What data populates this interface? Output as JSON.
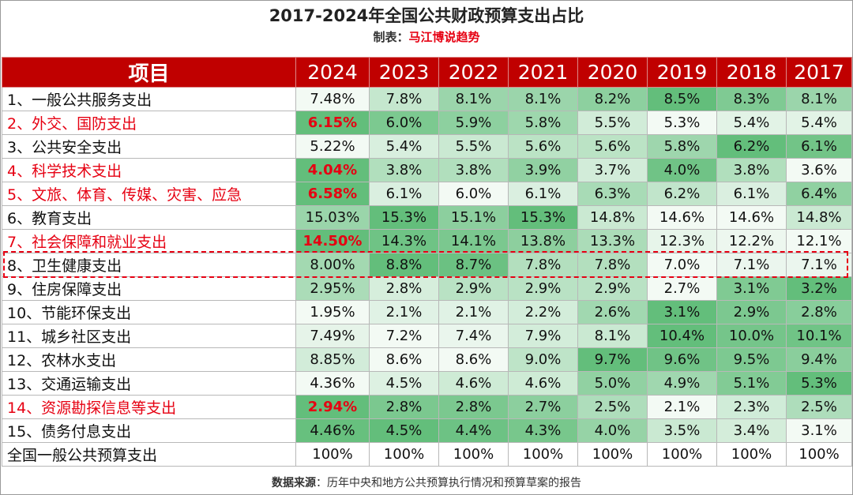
{
  "title": "2017-2024年全国公共财政预算支出占比",
  "maker_label": "制表：",
  "maker_name": "马江博说趋势",
  "source_label": "数据来源",
  "source_sep": "：",
  "source_text": "历年中央和地方公共预算执行情况和预算草案的报告",
  "chart_data": {
    "type": "table",
    "title": "2017-2024年全国公共财政预算支出占比",
    "header_item": "项目",
    "years": [
      "2024",
      "2023",
      "2022",
      "2021",
      "2020",
      "2019",
      "2018",
      "2017"
    ],
    "rows": [
      {
        "label": "1、一般公共服务支出",
        "red": false,
        "values": [
          "7.48%",
          "7.8%",
          "8.1%",
          "8.1%",
          "8.2%",
          "8.5%",
          "8.3%",
          "8.1%"
        ]
      },
      {
        "label": "2、外交、国防支出",
        "red": true,
        "values": [
          "6.15%",
          "6.0%",
          "5.9%",
          "5.8%",
          "5.5%",
          "5.3%",
          "5.4%",
          "5.4%"
        ]
      },
      {
        "label": "3、公共安全支出",
        "red": false,
        "values": [
          "5.22%",
          "5.4%",
          "5.5%",
          "5.6%",
          "5.6%",
          "5.8%",
          "6.2%",
          "6.1%"
        ]
      },
      {
        "label": "4、科学技术支出",
        "red": true,
        "values": [
          "4.04%",
          "3.8%",
          "3.8%",
          "3.9%",
          "3.7%",
          "4.0%",
          "3.8%",
          "3.6%"
        ]
      },
      {
        "label": "5、文旅、体育、传媒、灾害、应急",
        "red": true,
        "values": [
          "6.58%",
          "6.1%",
          "6.0%",
          "6.1%",
          "6.3%",
          "6.2%",
          "6.1%",
          "6.4%"
        ]
      },
      {
        "label": "6、教育支出",
        "red": false,
        "values": [
          "15.03%",
          "15.3%",
          "15.1%",
          "15.3%",
          "14.8%",
          "14.6%",
          "14.6%",
          "14.8%"
        ]
      },
      {
        "label": "7、社会保障和就业支出",
        "red": true,
        "values": [
          "14.50%",
          "14.3%",
          "14.1%",
          "13.8%",
          "13.3%",
          "12.3%",
          "12.2%",
          "12.1%"
        ]
      },
      {
        "label": "8、卫生健康支出",
        "red": false,
        "values": [
          "8.00%",
          "8.8%",
          "8.7%",
          "7.8%",
          "7.8%",
          "7.0%",
          "7.1%",
          "7.1%"
        ]
      },
      {
        "label": "9、住房保障支出",
        "red": false,
        "values": [
          "2.95%",
          "2.8%",
          "2.9%",
          "2.9%",
          "2.9%",
          "2.7%",
          "3.1%",
          "3.2%"
        ]
      },
      {
        "label": "10、节能环保支出",
        "red": false,
        "values": [
          "1.95%",
          "2.1%",
          "2.1%",
          "2.2%",
          "2.6%",
          "3.1%",
          "2.9%",
          "2.8%"
        ]
      },
      {
        "label": "11、城乡社区支出",
        "red": false,
        "values": [
          "7.49%",
          "7.2%",
          "7.4%",
          "7.9%",
          "8.1%",
          "10.4%",
          "10.0%",
          "10.1%"
        ]
      },
      {
        "label": "12、农林水支出",
        "red": false,
        "values": [
          "8.85%",
          "8.6%",
          "8.6%",
          "9.0%",
          "9.7%",
          "9.6%",
          "9.5%",
          "9.4%"
        ]
      },
      {
        "label": "13、交通运输支出",
        "red": false,
        "values": [
          "4.36%",
          "4.5%",
          "4.6%",
          "4.6%",
          "5.0%",
          "4.9%",
          "5.1%",
          "5.3%"
        ]
      },
      {
        "label": "14、资源勘探信息等支出",
        "red": true,
        "values": [
          "2.94%",
          "2.8%",
          "2.8%",
          "2.7%",
          "2.5%",
          "2.1%",
          "2.3%",
          "2.5%"
        ]
      },
      {
        "label": "15、债务付息支出",
        "red": false,
        "values": [
          "4.46%",
          "4.5%",
          "4.4%",
          "4.3%",
          "4.0%",
          "3.5%",
          "3.4%",
          "3.1%"
        ]
      },
      {
        "label": "全国一般公共预算支出",
        "red": false,
        "values": [
          "100%",
          "100%",
          "100%",
          "100%",
          "100%",
          "100%",
          "100%",
          "100%"
        ]
      }
    ],
    "highlighted_row": 7
  },
  "colors": {
    "header_bg": "#c00000",
    "header_text": "#ffffff",
    "red_text": "#e60012",
    "scale_low": "#ffffff",
    "scale_high": "#63be7b"
  }
}
